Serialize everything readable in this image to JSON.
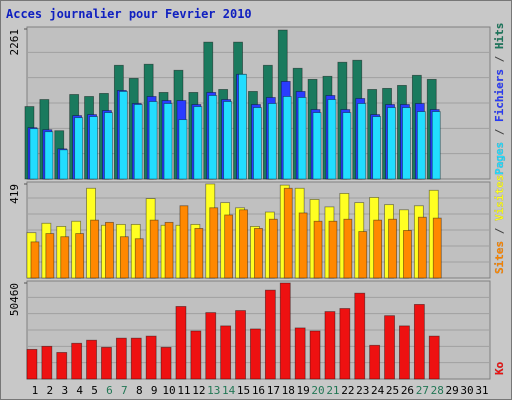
{
  "separator": " / ",
  "chart_data": [
    {
      "type": "bar",
      "title": "Acces journalier pour Fevrier 2010",
      "categories": [
        "1",
        "2",
        "3",
        "4",
        "5",
        "6",
        "7",
        "8",
        "9",
        "10",
        "11",
        "12",
        "13",
        "14",
        "15",
        "16",
        "17",
        "18",
        "19",
        "20",
        "21",
        "22",
        "23",
        "24",
        "25",
        "26",
        "27",
        "28",
        "29",
        "30",
        "31"
      ],
      "category_colors": [
        "#000000",
        "#000000",
        "#000000",
        "#000000",
        "#000000",
        "#227755",
        "#227755",
        "#000000",
        "#000000",
        "#000000",
        "#000000",
        "#000000",
        "#227755",
        "#227755",
        "#000000",
        "#000000",
        "#000000",
        "#000000",
        "#000000",
        "#227755",
        "#227755",
        "#000000",
        "#000000",
        "#000000",
        "#000000",
        "#000000",
        "#227755",
        "#227755",
        "#000000",
        "#000000",
        "#000000"
      ],
      "ylim": [
        0,
        2261
      ],
      "yticks": [
        2261
      ],
      "grid": true,
      "series": [
        {
          "name": "Pages",
          "color": "#22ddff",
          "values": [
            759,
            713,
            440,
            925,
            941,
            1001,
            1320,
            1123,
            1168,
            1138,
            895,
            1092,
            1259,
            1168,
            1578,
            1077,
            1138,
            1244,
            1229,
            1001,
            1198,
            1001,
            1138,
            941,
            1077,
            1077,
            1016,
            1016,
            null,
            null,
            null
          ]
        },
        {
          "name": "Fichiers",
          "color": "#2a3cff",
          "values": [
            774,
            743,
            455,
            956,
            971,
            1032,
            1335,
            1138,
            1244,
            1183,
            1183,
            1123,
            1305,
            1198,
            1578,
            1123,
            1229,
            1471,
            1320,
            1047,
            1259,
            1047,
            1214,
            971,
            1123,
            1123,
            1138,
            1047,
            null,
            null,
            null
          ]
        },
        {
          "name": "Hits",
          "color": "#1a7a5e",
          "values": [
            1092,
            1198,
            728,
            1274,
            1244,
            1290,
            1714,
            1517,
            1730,
            1305,
            1639,
            1305,
            2063,
            1350,
            2063,
            1320,
            1714,
            2245,
            1669,
            1502,
            1548,
            1760,
            1790,
            1350,
            1366,
            1411,
            1563,
            1502,
            null,
            null,
            null
          ]
        }
      ]
    },
    {
      "type": "bar",
      "ylim": [
        0,
        419
      ],
      "yticks": [
        419
      ],
      "grid": true,
      "series": [
        {
          "name": "Sites",
          "color": "#ff8800",
          "values": [
            161,
            198,
            184,
            198,
            258,
            248,
            184,
            175,
            258,
            248,
            322,
            221,
            313,
            281,
            304,
            221,
            262,
            400,
            290,
            253,
            253,
            262,
            207,
            258,
            262,
            212,
            271,
            267,
            null,
            null,
            null
          ]
        },
        {
          "name": "Visites",
          "color": "#ffff22",
          "values": [
            202,
            244,
            230,
            253,
            400,
            235,
            239,
            239,
            354,
            235,
            235,
            239,
            419,
            336,
            313,
            230,
            294,
            414,
            400,
            350,
            317,
            377,
            336,
            359,
            327,
            304,
            322,
            391,
            null,
            null,
            null
          ]
        }
      ]
    },
    {
      "type": "bar",
      "ylim": [
        0,
        50460
      ],
      "yticks": [
        50460
      ],
      "grid": true,
      "series": [
        {
          "name": "Ko",
          "color": "#ee1111",
          "values": [
            15570,
            17180,
            13960,
            18790,
            20400,
            16650,
            21480,
            21480,
            22550,
            16650,
            38130,
            25240,
            34900,
            27920,
            35980,
            26310,
            46720,
            50460,
            26850,
            25240,
            35440,
            37050,
            45110,
            17720,
            33290,
            27920,
            39200,
            22550,
            null,
            null,
            null
          ]
        }
      ]
    }
  ]
}
